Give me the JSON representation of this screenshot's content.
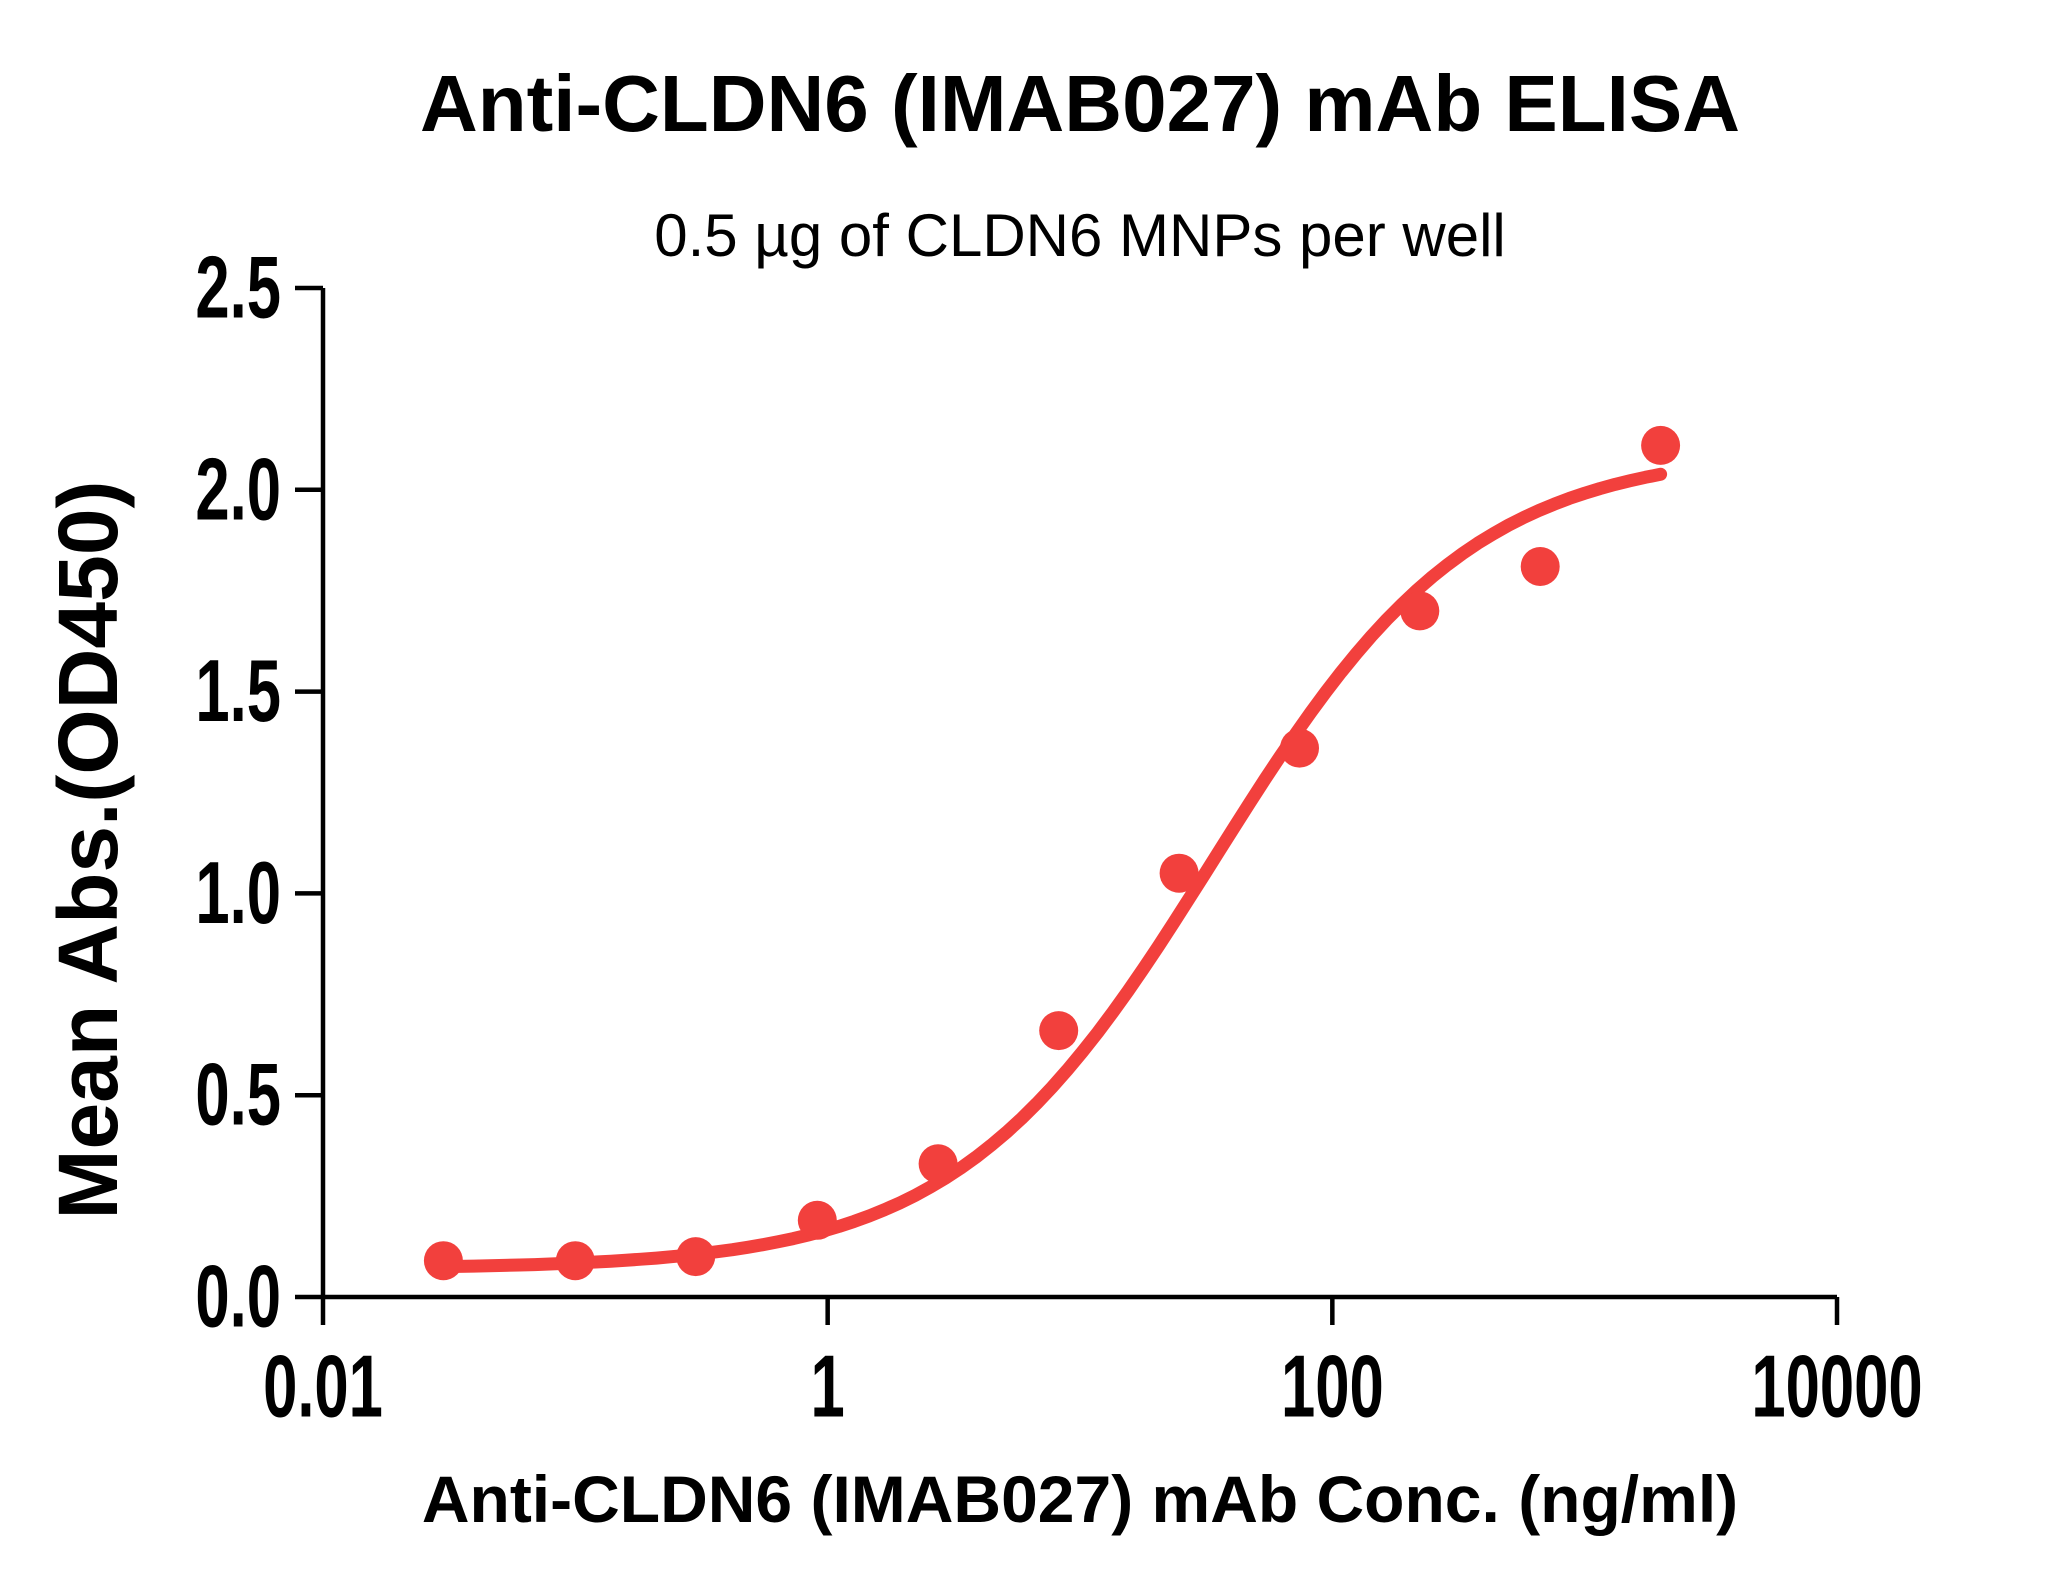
{
  "page": {
    "background_color": "#ffffff",
    "text_color": "#000000"
  },
  "chart_data": {
    "type": "scatter",
    "title": "Anti-CLDN6 (IMAB027) mAb ELISA",
    "subtitle": "0.5 µg of CLDN6 MNPs per well",
    "xlabel": "Anti-CLDN6 (IMAB027) mAb Conc. (ng/ml)",
    "ylabel": "Mean Abs.(OD450)",
    "x_scale": "log10",
    "xlim": [
      0.01,
      10000
    ],
    "ylim": [
      0.0,
      2.5
    ],
    "grid": "off",
    "legend": "none",
    "x_ticks": [
      {
        "value": 0.01,
        "label": "0.01"
      },
      {
        "value": 1,
        "label": "1"
      },
      {
        "value": 100,
        "label": "100"
      },
      {
        "value": 10000,
        "label": "10000"
      }
    ],
    "y_ticks": [
      {
        "value": 0.0,
        "label": "0.0"
      },
      {
        "value": 0.5,
        "label": "0.5"
      },
      {
        "value": 1.0,
        "label": "1.0"
      },
      {
        "value": 1.5,
        "label": "1.5"
      },
      {
        "value": 2.0,
        "label": "2.0"
      },
      {
        "value": 2.5,
        "label": "2.5"
      }
    ],
    "series": [
      {
        "name": "Anti-CLDN6 (IMAB027) mAb",
        "color": "#F2403D",
        "marker": "circle",
        "points": [
          {
            "x": 0.03,
            "y": 0.09
          },
          {
            "x": 0.1,
            "y": 0.09
          },
          {
            "x": 0.3,
            "y": 0.1
          },
          {
            "x": 0.91,
            "y": 0.19
          },
          {
            "x": 2.74,
            "y": 0.33
          },
          {
            "x": 8.23,
            "y": 0.66
          },
          {
            "x": 24.7,
            "y": 1.05
          },
          {
            "x": 74.1,
            "y": 1.36
          },
          {
            "x": 222.2,
            "y": 1.7
          },
          {
            "x": 666.7,
            "y": 1.81
          },
          {
            "x": 2000,
            "y": 2.11
          }
        ]
      }
    ],
    "fit_curve": {
      "model": "4PL",
      "bottom": 0.07,
      "top": 2.1,
      "ec50": 34,
      "hill": 0.85,
      "color": "#F2403D"
    }
  }
}
